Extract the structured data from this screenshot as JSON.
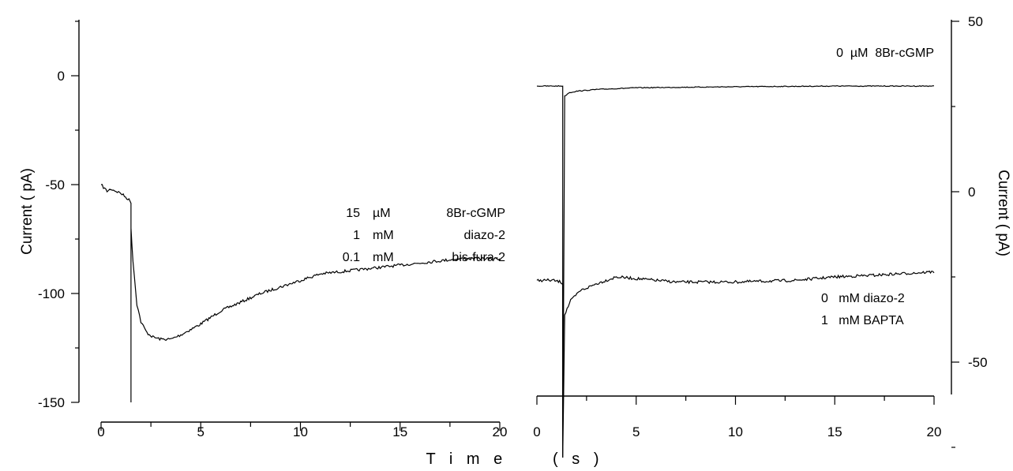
{
  "chart_data": [
    {
      "type": "line",
      "panel": "left",
      "ylabel": "Current ( pA)",
      "xlim": [
        0,
        20
      ],
      "ylim": [
        -150,
        25
      ],
      "xticks": [
        0,
        5,
        10,
        15,
        20
      ],
      "yticks": [
        -150,
        -100,
        -50,
        0
      ],
      "annotation": [
        [
          "15",
          "µM",
          "8Br-cGMP"
        ],
        [
          "1",
          "mM",
          "diazo-2"
        ],
        [
          "0.1",
          "mM",
          "bis-fura-2"
        ]
      ],
      "series": [
        {
          "x": [
            0,
            0.3,
            0.5,
            1.0,
            1.4,
            1.5,
            1.5,
            1.5,
            1.6,
            1.8,
            2.0,
            2.3,
            2.6,
            3.0,
            3.5,
            4.0,
            5.0,
            6.0,
            7.0,
            8.0,
            9.0,
            10.0,
            11.0,
            12.0,
            13.0,
            14.0,
            15.0,
            16.0,
            17.0,
            18.0,
            19.0,
            20.0
          ],
          "y": [
            -50,
            -53,
            -52,
            -54,
            -57,
            -58,
            -150,
            -70,
            -85,
            -105,
            -113,
            -118,
            -120,
            -121,
            -121,
            -119,
            -114,
            -108,
            -104,
            -100,
            -97,
            -94,
            -91,
            -90,
            -89,
            -88,
            -87,
            -86,
            -85,
            -84,
            -84,
            -84
          ]
        }
      ]
    },
    {
      "type": "line",
      "panel": "right",
      "ylabel": "Current ( pA)",
      "xlim": [
        0,
        20
      ],
      "ylim": [
        -78,
        50
      ],
      "xticks": [
        0,
        5,
        10,
        15,
        20
      ],
      "yticks": [
        -50,
        0,
        50
      ],
      "annotation_top": "0  µM  8Br-cGMP",
      "annotation_bottom": [
        "0   mM diazo-2",
        "1   mM BAPTA"
      ],
      "series": [
        {
          "x": [
            0,
            1.2,
            1.3,
            1.3,
            1.4,
            1.6,
            2.0,
            3.0,
            5.0,
            10.0,
            15.0,
            20.0
          ],
          "y": [
            31,
            31,
            31,
            -78,
            28,
            29,
            29.5,
            30,
            30.5,
            30.8,
            31,
            31
          ]
        },
        {
          "x": [
            0,
            0.8,
            1.2,
            1.3,
            1.3,
            1.4,
            1.7,
            2.2,
            3.0,
            4.0,
            5.0,
            7.0,
            10.0,
            13.0,
            15.0,
            17.0,
            20.0
          ],
          "y": [
            -26,
            -26,
            -26.5,
            -27,
            -78,
            -36,
            -32,
            -29,
            -27,
            -25,
            -25.5,
            -26.5,
            -26.5,
            -26,
            -25,
            -24.5,
            -23.5
          ]
        }
      ]
    }
  ],
  "xlabel": "T i m e     ( s )"
}
